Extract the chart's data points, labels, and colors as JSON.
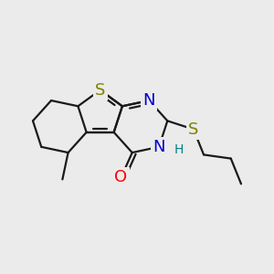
{
  "background_color": "#ebebeb",
  "atom_colors": {
    "S": "#808000",
    "N": "#0000cc",
    "O": "#ff0000",
    "C": "#1a1a1a",
    "H": "#008080"
  },
  "bond_color": "#1a1a1a",
  "bond_width": 1.6,
  "font_size_atoms": 13,
  "font_size_H": 10
}
